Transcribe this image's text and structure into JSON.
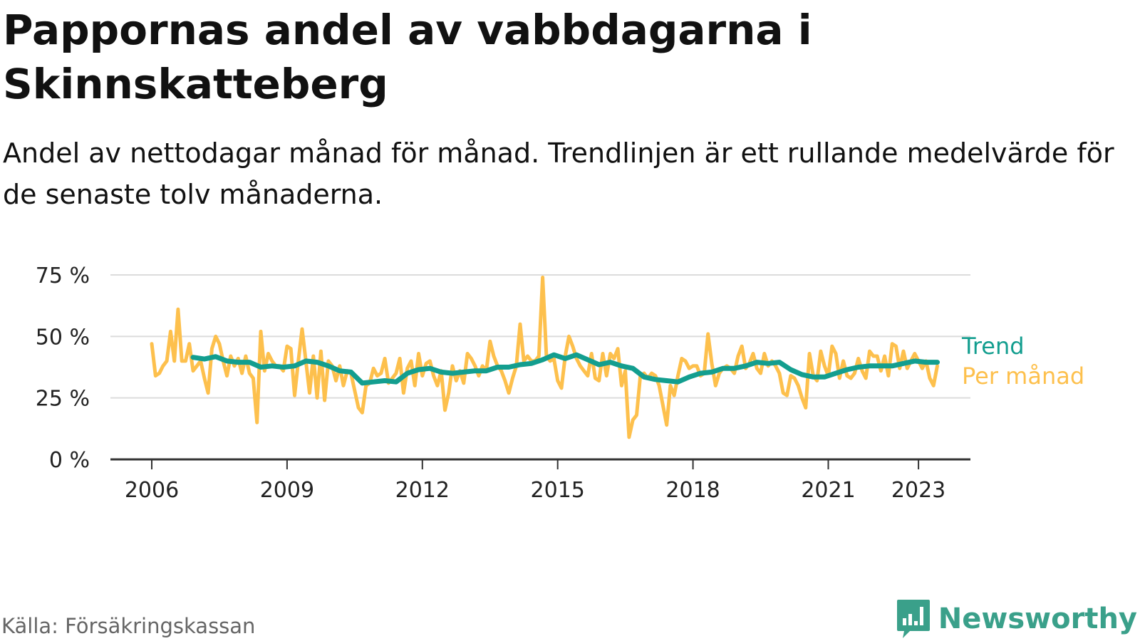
{
  "header": {
    "title": "Pappornas andel av vabbdagarna i Skinnskatteberg",
    "subtitle": "Andel av nettodagar månad för månad. Trendlinjen är ett rullande medelvärde för de senaste tolv månaderna."
  },
  "footer": {
    "source": "Källa: Försäkringskassan",
    "brand": "Newsworthy"
  },
  "colors": {
    "trend": "#139e8f",
    "monthly": "#fdc04d",
    "grid": "#dcdcdc",
    "axis": "#333333",
    "brand": "#3aa08a"
  },
  "icons": {
    "brand_logo": "bar-chart-speech-bubble-icon"
  },
  "chart_data": {
    "type": "line",
    "title": "Pappornas andel av vabbdagarna i Skinnskatteberg",
    "subtitle": "Andel av nettodagar månad för månad. Trendlinjen är ett rullande medelvärde för de senaste tolv månaderna.",
    "xlabel": "",
    "ylabel": "",
    "ylim": [
      0,
      75
    ],
    "yticks": [
      0,
      25,
      50,
      75
    ],
    "ytick_labels": [
      "0 %",
      "25 %",
      "50 %",
      "75 %"
    ],
    "xticks": [
      2006,
      2009,
      2012,
      2015,
      2018,
      2021,
      2023
    ],
    "xtick_labels": [
      "2006",
      "2009",
      "2012",
      "2015",
      "2018",
      "2021",
      "2023"
    ],
    "grid": true,
    "legend": "right, at line ends",
    "series": [
      {
        "name": "Per månad",
        "color": "#fdc04d",
        "points": [
          [
            "2006-01",
            47
          ],
          [
            "2006-02",
            34
          ],
          [
            "2006-03",
            35
          ],
          [
            "2006-04",
            38
          ],
          [
            "2006-05",
            40
          ],
          [
            "2006-06",
            52
          ],
          [
            "2006-07",
            40
          ],
          [
            "2006-08",
            61
          ],
          [
            "2006-09",
            40
          ],
          [
            "2006-10",
            40
          ],
          [
            "2006-11",
            47
          ],
          [
            "2006-12",
            36
          ],
          [
            "2007-01",
            38
          ],
          [
            "2007-02",
            40
          ],
          [
            "2007-03",
            33
          ],
          [
            "2007-04",
            27
          ],
          [
            "2007-05",
            45
          ],
          [
            "2007-06",
            50
          ],
          [
            "2007-07",
            47
          ],
          [
            "2007-08",
            40
          ],
          [
            "2007-09",
            34
          ],
          [
            "2007-10",
            42
          ],
          [
            "2007-11",
            38
          ],
          [
            "2007-12",
            41
          ],
          [
            "2008-01",
            35
          ],
          [
            "2008-02",
            42
          ],
          [
            "2008-03",
            35
          ],
          [
            "2008-04",
            33
          ],
          [
            "2008-05",
            15
          ],
          [
            "2008-06",
            52
          ],
          [
            "2008-07",
            36
          ],
          [
            "2008-08",
            43
          ],
          [
            "2008-09",
            40
          ],
          [
            "2008-10",
            38
          ],
          [
            "2008-11",
            38
          ],
          [
            "2008-12",
            36
          ],
          [
            "2009-01",
            46
          ],
          [
            "2009-02",
            45
          ],
          [
            "2009-03",
            26
          ],
          [
            "2009-04",
            40
          ],
          [
            "2009-05",
            53
          ],
          [
            "2009-06",
            40
          ],
          [
            "2009-07",
            27
          ],
          [
            "2009-08",
            42
          ],
          [
            "2009-09",
            25
          ],
          [
            "2009-10",
            44
          ],
          [
            "2009-11",
            24
          ],
          [
            "2009-12",
            40
          ],
          [
            "2010-01",
            38
          ],
          [
            "2010-02",
            32
          ],
          [
            "2010-03",
            38
          ],
          [
            "2010-04",
            30
          ],
          [
            "2010-05",
            36
          ],
          [
            "2010-06",
            35
          ],
          [
            "2010-07",
            28
          ],
          [
            "2010-08",
            21
          ],
          [
            "2010-09",
            19
          ],
          [
            "2010-10",
            30
          ],
          [
            "2010-11",
            31
          ],
          [
            "2010-12",
            37
          ],
          [
            "2011-01",
            34
          ],
          [
            "2011-02",
            35
          ],
          [
            "2011-03",
            41
          ],
          [
            "2011-04",
            31
          ],
          [
            "2011-05",
            33
          ],
          [
            "2011-06",
            35
          ],
          [
            "2011-07",
            41
          ],
          [
            "2011-08",
            27
          ],
          [
            "2011-09",
            37
          ],
          [
            "2011-10",
            40
          ],
          [
            "2011-11",
            30
          ],
          [
            "2011-12",
            43
          ],
          [
            "2012-01",
            34
          ],
          [
            "2012-02",
            39
          ],
          [
            "2012-03",
            40
          ],
          [
            "2012-04",
            34
          ],
          [
            "2012-05",
            30
          ],
          [
            "2012-06",
            36
          ],
          [
            "2012-07",
            20
          ],
          [
            "2012-08",
            27
          ],
          [
            "2012-09",
            38
          ],
          [
            "2012-10",
            32
          ],
          [
            "2012-11",
            36
          ],
          [
            "2012-12",
            31
          ],
          [
            "2013-01",
            43
          ],
          [
            "2013-02",
            41
          ],
          [
            "2013-03",
            38
          ],
          [
            "2013-04",
            34
          ],
          [
            "2013-05",
            38
          ],
          [
            "2013-06",
            36
          ],
          [
            "2013-07",
            48
          ],
          [
            "2013-08",
            42
          ],
          [
            "2013-09",
            38
          ],
          [
            "2013-10",
            36
          ],
          [
            "2013-11",
            32
          ],
          [
            "2013-12",
            27
          ],
          [
            "2014-01",
            33
          ],
          [
            "2014-02",
            38
          ],
          [
            "2014-03",
            55
          ],
          [
            "2014-04",
            40
          ],
          [
            "2014-05",
            42
          ],
          [
            "2014-06",
            40
          ],
          [
            "2014-07",
            40
          ],
          [
            "2014-08",
            42
          ],
          [
            "2014-09",
            74
          ],
          [
            "2014-10",
            42
          ],
          [
            "2014-11",
            40
          ],
          [
            "2014-12",
            41
          ],
          [
            "2015-01",
            32
          ],
          [
            "2015-02",
            29
          ],
          [
            "2015-03",
            42
          ],
          [
            "2015-04",
            50
          ],
          [
            "2015-05",
            46
          ],
          [
            "2015-06",
            41
          ],
          [
            "2015-07",
            38
          ],
          [
            "2015-08",
            36
          ],
          [
            "2015-09",
            34
          ],
          [
            "2015-10",
            43
          ],
          [
            "2015-11",
            33
          ],
          [
            "2015-12",
            32
          ],
          [
            "2016-01",
            43
          ],
          [
            "2016-02",
            34
          ],
          [
            "2016-03",
            43
          ],
          [
            "2016-04",
            41
          ],
          [
            "2016-05",
            45
          ],
          [
            "2016-06",
            30
          ],
          [
            "2016-07",
            36
          ],
          [
            "2016-08",
            9
          ],
          [
            "2016-09",
            16
          ],
          [
            "2016-10",
            18
          ],
          [
            "2016-11",
            34
          ],
          [
            "2016-12",
            35
          ],
          [
            "2017-01",
            33
          ],
          [
            "2017-02",
            35
          ],
          [
            "2017-03",
            34
          ],
          [
            "2017-04",
            30
          ],
          [
            "2017-05",
            22
          ],
          [
            "2017-06",
            14
          ],
          [
            "2017-07",
            30
          ],
          [
            "2017-08",
            26
          ],
          [
            "2017-09",
            34
          ],
          [
            "2017-10",
            41
          ],
          [
            "2017-11",
            40
          ],
          [
            "2017-12",
            37
          ],
          [
            "2018-01",
            38
          ],
          [
            "2018-02",
            38
          ],
          [
            "2018-03",
            34
          ],
          [
            "2018-04",
            35
          ],
          [
            "2018-05",
            51
          ],
          [
            "2018-06",
            39
          ],
          [
            "2018-07",
            30
          ],
          [
            "2018-08",
            35
          ],
          [
            "2018-09",
            37
          ],
          [
            "2018-10",
            38
          ],
          [
            "2018-11",
            37
          ],
          [
            "2018-12",
            35
          ],
          [
            "2019-01",
            42
          ],
          [
            "2019-02",
            46
          ],
          [
            "2019-03",
            37
          ],
          [
            "2019-04",
            39
          ],
          [
            "2019-05",
            43
          ],
          [
            "2019-06",
            37
          ],
          [
            "2019-07",
            35
          ],
          [
            "2019-08",
            43
          ],
          [
            "2019-09",
            38
          ],
          [
            "2019-10",
            40
          ],
          [
            "2019-11",
            38
          ],
          [
            "2019-12",
            35
          ],
          [
            "2020-01",
            27
          ],
          [
            "2020-02",
            26
          ],
          [
            "2020-03",
            34
          ],
          [
            "2020-04",
            33
          ],
          [
            "2020-05",
            30
          ],
          [
            "2020-06",
            25
          ],
          [
            "2020-07",
            21
          ],
          [
            "2020-08",
            43
          ],
          [
            "2020-09",
            34
          ],
          [
            "2020-10",
            32
          ],
          [
            "2020-11",
            44
          ],
          [
            "2020-12",
            38
          ],
          [
            "2021-01",
            34
          ],
          [
            "2021-02",
            46
          ],
          [
            "2021-03",
            43
          ],
          [
            "2021-04",
            33
          ],
          [
            "2021-05",
            40
          ],
          [
            "2021-06",
            34
          ],
          [
            "2021-07",
            33
          ],
          [
            "2021-08",
            35
          ],
          [
            "2021-09",
            41
          ],
          [
            "2021-10",
            36
          ],
          [
            "2021-11",
            33
          ],
          [
            "2021-12",
            44
          ],
          [
            "2022-01",
            42
          ],
          [
            "2022-02",
            42
          ],
          [
            "2022-03",
            36
          ],
          [
            "2022-04",
            42
          ],
          [
            "2022-05",
            34
          ],
          [
            "2022-06",
            47
          ],
          [
            "2022-07",
            46
          ],
          [
            "2022-08",
            37
          ],
          [
            "2022-09",
            44
          ],
          [
            "2022-10",
            37
          ],
          [
            "2022-11",
            40
          ],
          [
            "2022-12",
            43
          ],
          [
            "2023-01",
            40
          ],
          [
            "2023-02",
            37
          ],
          [
            "2023-03",
            40
          ],
          [
            "2023-04",
            33
          ],
          [
            "2023-05",
            30
          ],
          [
            "2023-06",
            38
          ]
        ]
      },
      {
        "name": "Trend",
        "color": "#139e8f",
        "points": [
          [
            "2006-12",
            41.5
          ],
          [
            "2007-03",
            40.8
          ],
          [
            "2007-06",
            41.8
          ],
          [
            "2007-09",
            40.0
          ],
          [
            "2007-12",
            39.5
          ],
          [
            "2008-03",
            39.5
          ],
          [
            "2008-06",
            37.5
          ],
          [
            "2008-09",
            38.0
          ],
          [
            "2008-12",
            37.5
          ],
          [
            "2009-03",
            38.0
          ],
          [
            "2009-06",
            40.0
          ],
          [
            "2009-09",
            39.5
          ],
          [
            "2009-12",
            38.0
          ],
          [
            "2010-03",
            36.0
          ],
          [
            "2010-06",
            35.5
          ],
          [
            "2010-09",
            31.0
          ],
          [
            "2010-12",
            31.5
          ],
          [
            "2011-03",
            32.0
          ],
          [
            "2011-06",
            31.5
          ],
          [
            "2011-09",
            35.0
          ],
          [
            "2011-12",
            36.5
          ],
          [
            "2012-03",
            37.0
          ],
          [
            "2012-06",
            35.5
          ],
          [
            "2012-09",
            35.0
          ],
          [
            "2012-12",
            35.5
          ],
          [
            "2013-03",
            36.0
          ],
          [
            "2013-06",
            36.0
          ],
          [
            "2013-09",
            37.5
          ],
          [
            "2013-12",
            37.5
          ],
          [
            "2014-03",
            38.5
          ],
          [
            "2014-06",
            39.0
          ],
          [
            "2014-09",
            40.5
          ],
          [
            "2014-12",
            42.5
          ],
          [
            "2015-03",
            41.0
          ],
          [
            "2015-06",
            42.5
          ],
          [
            "2015-09",
            40.5
          ],
          [
            "2015-12",
            38.5
          ],
          [
            "2016-03",
            39.5
          ],
          [
            "2016-06",
            38.0
          ],
          [
            "2016-09",
            37.0
          ],
          [
            "2016-12",
            33.5
          ],
          [
            "2017-03",
            32.5
          ],
          [
            "2017-06",
            32.0
          ],
          [
            "2017-09",
            31.5
          ],
          [
            "2017-12",
            33.5
          ],
          [
            "2018-03",
            35.0
          ],
          [
            "2018-06",
            35.5
          ],
          [
            "2018-09",
            37.0
          ],
          [
            "2018-12",
            37.0
          ],
          [
            "2019-03",
            38.0
          ],
          [
            "2019-06",
            39.5
          ],
          [
            "2019-09",
            39.0
          ],
          [
            "2019-12",
            39.5
          ],
          [
            "2020-03",
            36.5
          ],
          [
            "2020-06",
            34.5
          ],
          [
            "2020-09",
            33.5
          ],
          [
            "2020-12",
            33.5
          ],
          [
            "2021-03",
            35.0
          ],
          [
            "2021-06",
            36.5
          ],
          [
            "2021-09",
            37.5
          ],
          [
            "2021-12",
            38.0
          ],
          [
            "2022-03",
            38.0
          ],
          [
            "2022-06",
            38.0
          ],
          [
            "2022-09",
            39.0
          ],
          [
            "2022-12",
            40.0
          ],
          [
            "2023-03",
            39.5
          ],
          [
            "2023-06",
            39.5
          ]
        ]
      }
    ]
  }
}
